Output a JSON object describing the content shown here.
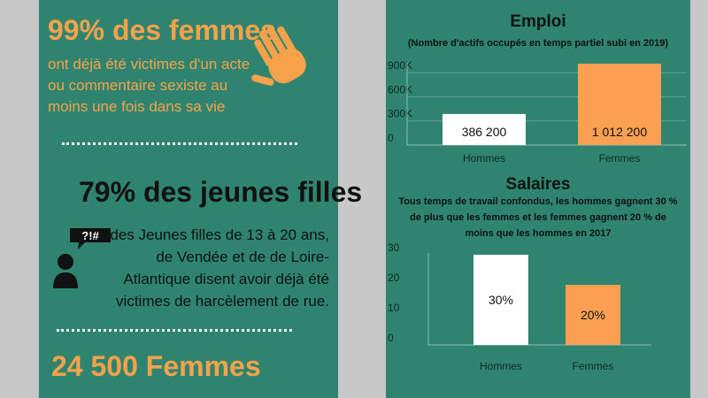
{
  "left": {
    "stat1": {
      "headline": "99% des femmes",
      "lines": [
        "ont déjà été victimes d'un acte",
        "ou commentaire sexiste au",
        "moins une fois dans sa vie"
      ],
      "icon": "waving-hand-icon"
    },
    "stat2": {
      "headline": "79% des jeunes filles",
      "lines": [
        "des Jeunes filles de 13 à 20 ans,",
        "de Vendée et de de Loire-",
        "Atlantique disent avoir déjà été",
        "victimes de harcèlement de rue."
      ],
      "icon": "person-speech-icon",
      "bubble_text": "?!#"
    },
    "stat3": {
      "headline": "24 500 Femmes"
    }
  },
  "colors": {
    "panel": "#2f846f",
    "accent": "#f7a24b",
    "bar_white": "#ffffff",
    "bar_orange": "#fba052",
    "background": "#c8c8c8"
  },
  "chart_data": [
    {
      "type": "bar",
      "title": "Emploi",
      "subtitle": "(Nombre d'actifs occupés en temps partiel subi en 2019)",
      "categories": [
        "Hommes",
        "Femmes"
      ],
      "values": [
        386200,
        1012200
      ],
      "data_labels": [
        "386 200",
        "1 012 200"
      ],
      "ylim": [
        0,
        1012200
      ],
      "yticks": [
        0,
        300000,
        600000,
        900000
      ],
      "ytick_labels": [
        "0",
        "300K",
        "600K",
        "900K"
      ],
      "grid": true
    },
    {
      "type": "bar",
      "title": "Salaires",
      "subtitle_lines": [
        "Tous temps de travail confondus, les hommes gagnent 30 %",
        "de plus que les  femmes et les femmes gagnent 20 % de",
        "moins que les hommes en 2017"
      ],
      "categories": [
        "Hommes",
        "Femmes"
      ],
      "values": [
        30,
        20
      ],
      "data_labels": [
        "30%",
        "20%"
      ],
      "ylim": [
        0,
        30
      ],
      "yticks": [
        0,
        10,
        20,
        30
      ],
      "ytick_labels": [
        "0",
        "10",
        "20",
        "30"
      ],
      "grid": false
    }
  ]
}
